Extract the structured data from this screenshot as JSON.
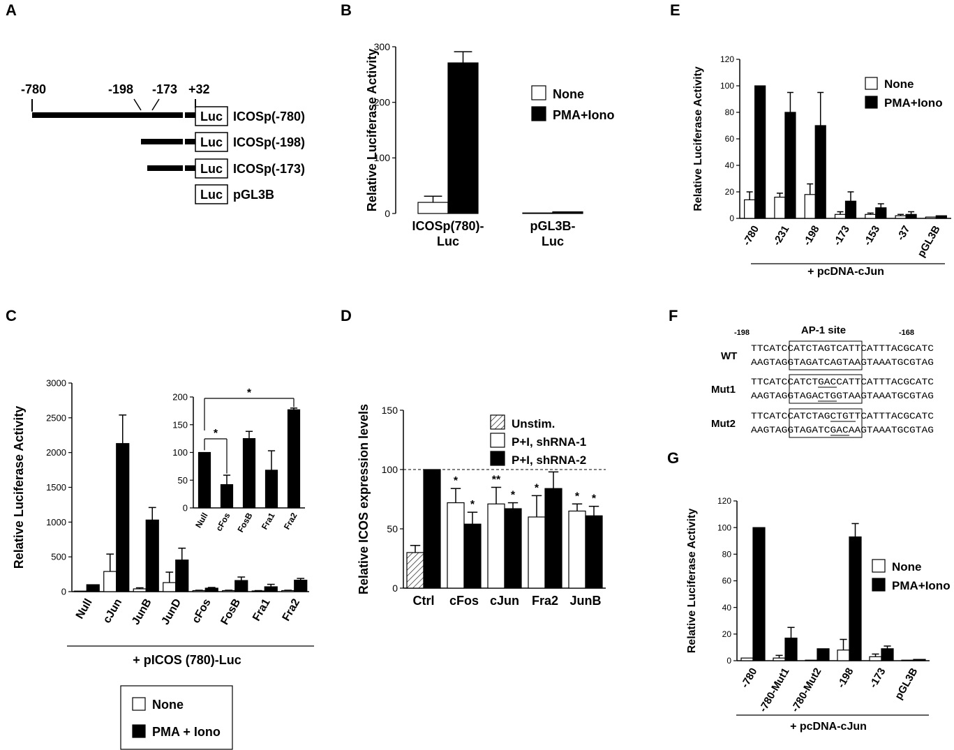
{
  "panel_letters": {
    "A": "A",
    "B": "B",
    "C": "C",
    "D": "D",
    "E": "E",
    "F": "F",
    "G": "G"
  },
  "panelA": {
    "positions": [
      "-780",
      "-198",
      "-173",
      "+32"
    ],
    "constructs": [
      "ICOSp(-780)",
      "ICOSp(-198)",
      "ICOSp(-173)",
      "pGL3B"
    ],
    "luc": "Luc"
  },
  "panelF": {
    "start": "-198",
    "end": "-168",
    "site": "AP-1 site",
    "rows": [
      {
        "name": "WT",
        "top": "TTCATCCATCTAGTCATTCATTTACGCATC",
        "bottom": "AAGTAGGTAGATCAGTAAGTAAATGCGTAG"
      },
      {
        "name": "Mut1",
        "top": "TTCATCCATCTGACCATTCATTTACGCATC",
        "bottom": "AAGTAGGTAGACTGGTAAGTAAATGCGTAG"
      },
      {
        "name": "Mut2",
        "top": "TTCATCCATCTAGCTGTTCATTTACGCATC",
        "bottom": "AAGTAGGTAGATCGACAAGTAAATGCGTAG"
      }
    ]
  },
  "chart_data": [
    {
      "id": "B",
      "type": "bar",
      "ylabel": "Relative Luciferase Activity",
      "ylim": [
        0,
        300
      ],
      "yticks": [
        "0",
        "100",
        "200",
        "300"
      ],
      "categories": [
        "ICOSp(780)-\nLuc",
        "pGL3B-\nLuc"
      ],
      "series": [
        {
          "name": "None",
          "color": "#ffffff",
          "values": [
            20,
            1
          ],
          "errors": [
            11,
            0
          ]
        },
        {
          "name": "PMA+Iono",
          "color": "#000000",
          "values": [
            271,
            3
          ],
          "errors": [
            20,
            0
          ]
        }
      ],
      "legend": "top-right"
    },
    {
      "id": "C",
      "type": "bar",
      "ylabel": "Relative Luciferase Activity",
      "xlabel": "+ pICOS (780)-Luc",
      "ylim": [
        0,
        3000
      ],
      "yticks": [
        "0",
        "500",
        "1000",
        "1500",
        "2000",
        "2500",
        "3000"
      ],
      "categories": [
        "Null",
        "cJun",
        "JunB",
        "JunD",
        "cFos",
        "FosB",
        "Fra1",
        "Fra2"
      ],
      "series": [
        {
          "name": "None",
          "color": "#ffffff",
          "values": [
            5,
            290,
            40,
            130,
            15,
            15,
            10,
            15
          ],
          "errors": [
            0,
            250,
            15,
            150,
            5,
            5,
            5,
            5
          ]
        },
        {
          "name": "PMA + Iono",
          "color": "#000000",
          "values": [
            100,
            2130,
            1030,
            455,
            50,
            160,
            70,
            165
          ],
          "errors": [
            0,
            410,
            180,
            170,
            10,
            50,
            35,
            25
          ]
        }
      ],
      "legend": "bottom"
    },
    {
      "id": "C-inset",
      "type": "bar",
      "ylim": [
        0,
        200
      ],
      "yticks": [
        "0",
        "50",
        "100",
        "150",
        "200"
      ],
      "categories": [
        "Null",
        "cFos",
        "FosB",
        "Fra1",
        "Fra2"
      ],
      "series": [
        {
          "name": "",
          "color": "#000000",
          "values": [
            100,
            42,
            125,
            68,
            177
          ],
          "errors": [
            0,
            17,
            13,
            35,
            3
          ]
        }
      ],
      "significance": [
        {
          "from": "Null",
          "to": "cFos",
          "label": "*"
        },
        {
          "from": "Null",
          "to": "Fra2",
          "label": "*"
        }
      ]
    },
    {
      "id": "D",
      "type": "bar",
      "ylabel": "Relative ICOS expression levels",
      "ylim": [
        0,
        150
      ],
      "yticks": [
        "0",
        "50",
        "100",
        "150"
      ],
      "reference_line": 100,
      "categories": [
        "Ctrl",
        "cFos",
        "cJun",
        "Fra2",
        "JunB"
      ],
      "series": [
        {
          "name": "Unstim.",
          "color": "hatched",
          "values": [
            30,
            null,
            null,
            null,
            null
          ],
          "errors": [
            6,
            null,
            null,
            null,
            null
          ]
        },
        {
          "name": "P+I, shRNA-1",
          "color": "#ffffff",
          "values": [
            null,
            72,
            71,
            60,
            65
          ],
          "errors": [
            null,
            12,
            14,
            18,
            6
          ]
        },
        {
          "name": "P+I, shRNA-2",
          "color": "#000000",
          "values": [
            100,
            54,
            67,
            84,
            61
          ],
          "errors": [
            0,
            10,
            5,
            14,
            8
          ]
        }
      ],
      "annotations": {
        "cFos": [
          "*",
          "*"
        ],
        "cJun": [
          "**",
          "*"
        ],
        "Fra2": [
          "*",
          ""
        ],
        "JunB": [
          "*",
          "*"
        ]
      },
      "legend": "top-right"
    },
    {
      "id": "E",
      "type": "bar",
      "ylabel": "Relative Luciferase Activity",
      "xlabel": "+ pcDNA-cJun",
      "ylim": [
        0,
        120
      ],
      "yticks": [
        "0",
        "20",
        "40",
        "60",
        "80",
        "100",
        "120"
      ],
      "categories": [
        "-780",
        "-231",
        "-198",
        "-173",
        "-153",
        "-37",
        "pGL3B"
      ],
      "series": [
        {
          "name": "None",
          "color": "#ffffff",
          "values": [
            14,
            16,
            18,
            3,
            3,
            2,
            1
          ],
          "errors": [
            6,
            3,
            8,
            2,
            1,
            1,
            0
          ]
        },
        {
          "name": "PMA+Iono",
          "color": "#000000",
          "values": [
            100,
            80,
            70,
            13,
            8,
            3,
            2
          ],
          "errors": [
            0,
            15,
            25,
            7,
            3,
            2,
            0
          ]
        }
      ],
      "legend": "top-right"
    },
    {
      "id": "G",
      "type": "bar",
      "ylabel": "Relative Luciferase Activity",
      "xlabel": "+ pcDNA-cJun",
      "ylim": [
        0,
        120
      ],
      "yticks": [
        "0",
        "20",
        "40",
        "60",
        "80",
        "100",
        "120"
      ],
      "categories": [
        "-780",
        "-780-Mut1",
        "-780-Mut2",
        "-198",
        "-173",
        "pGL3B"
      ],
      "series": [
        {
          "name": "None",
          "color": "#ffffff",
          "values": [
            2,
            2,
            0,
            8,
            3,
            0
          ],
          "errors": [
            0,
            2,
            0,
            8,
            2,
            0
          ]
        },
        {
          "name": "PMA+Iono",
          "color": "#000000",
          "values": [
            100,
            17,
            9,
            93,
            9,
            1
          ],
          "errors": [
            0,
            8,
            0,
            10,
            2,
            0
          ]
        }
      ],
      "legend": "right"
    }
  ]
}
